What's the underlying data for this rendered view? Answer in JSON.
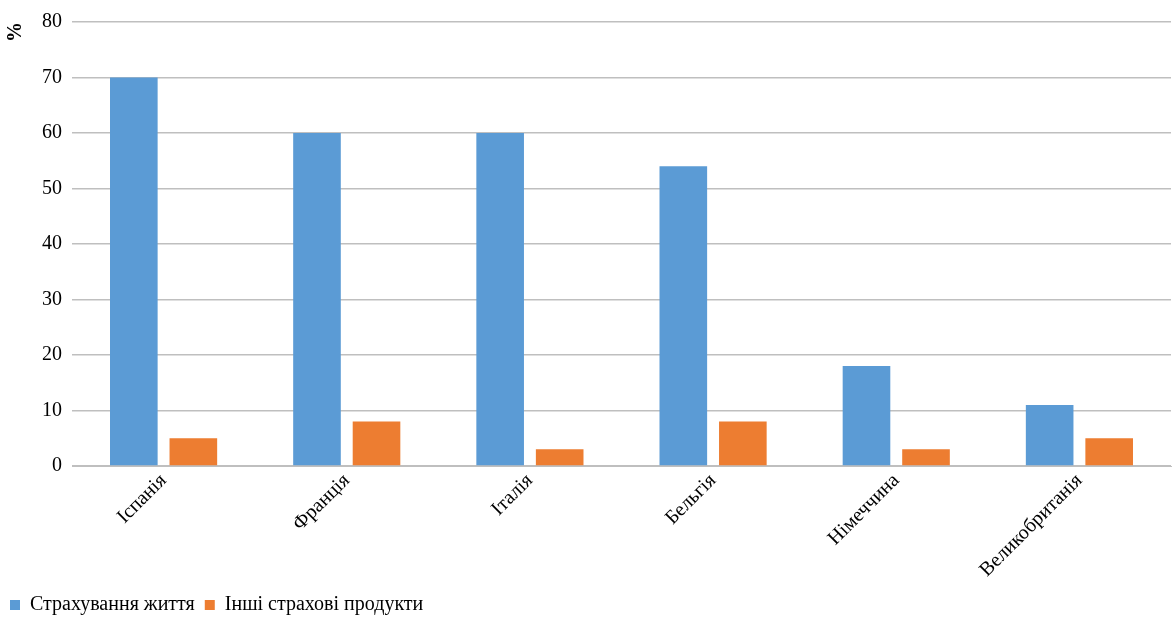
{
  "chart_data": {
    "type": "bar",
    "ylabel": "%",
    "categories": [
      "Іспанія",
      "Франція",
      "Італія",
      "Бельгія",
      "Німеччина",
      "Великобританія"
    ],
    "series": [
      {
        "name": "Страхування життя",
        "color": "#5b9bd5",
        "values": [
          70,
          60,
          60,
          54,
          18,
          11
        ]
      },
      {
        "name": "Інші страхові продукти",
        "color": "#ed7d31",
        "values": [
          5,
          8,
          3,
          8,
          3,
          5
        ]
      }
    ],
    "ylim": [
      0,
      80
    ],
    "yticks": [
      0,
      10,
      20,
      30,
      40,
      50,
      60,
      70,
      80
    ],
    "grid": "y",
    "legend": "bottom left"
  }
}
